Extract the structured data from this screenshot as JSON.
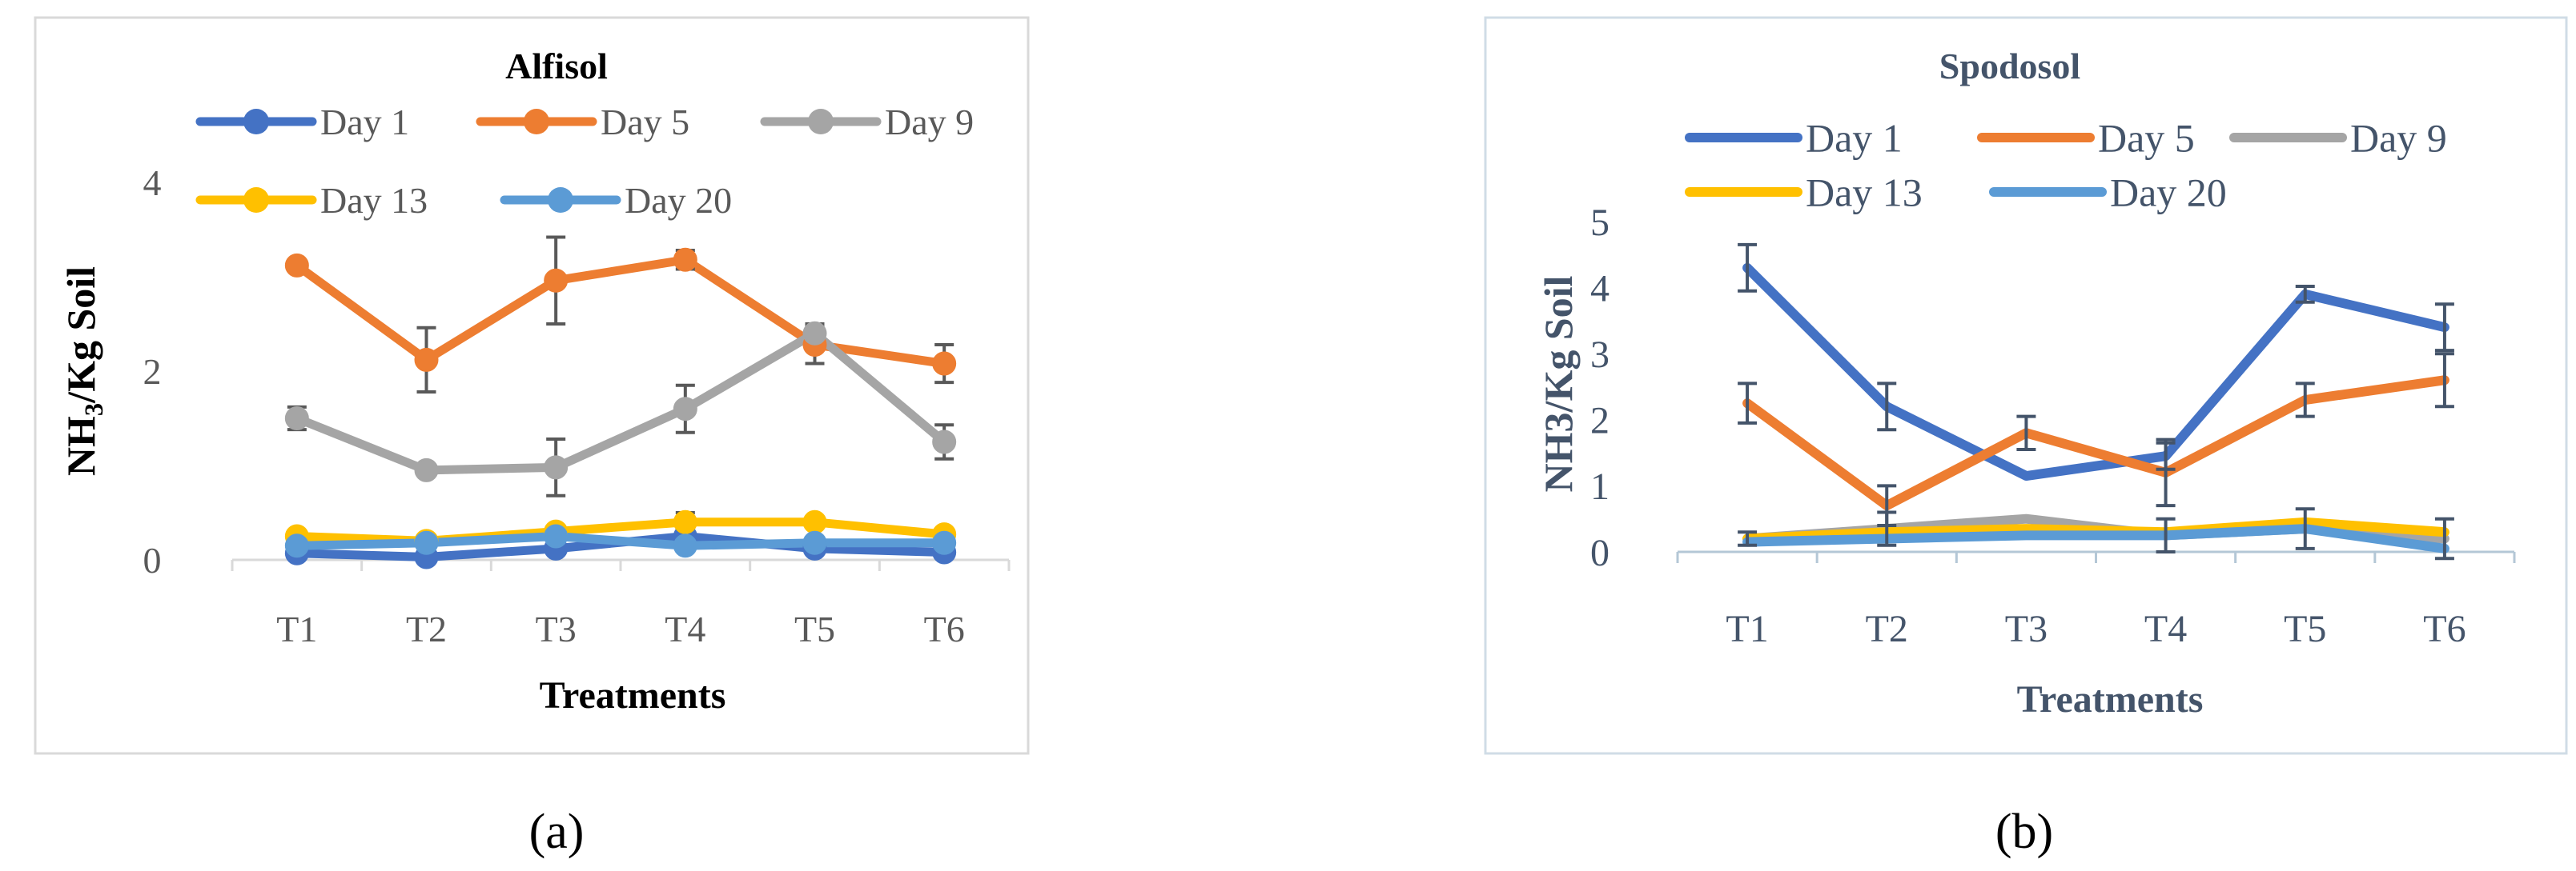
{
  "figure_labels": {
    "a": "(a)",
    "b": "(b)"
  },
  "chart_data": [
    {
      "type": "line",
      "title": "Alfisol",
      "xlabel": "Treatments",
      "ylabel": "NH₃/Kg Soil",
      "categories": [
        "T1",
        "T2",
        "T3",
        "T4",
        "T5",
        "T6"
      ],
      "ylim": [
        0,
        4
      ],
      "yticks": [
        "0",
        "2",
        "4"
      ],
      "grid": false,
      "legend_position": "top",
      "markers": true,
      "series": [
        {
          "name": "Day 1",
          "color": "#4472C4",
          "values": [
            0.07,
            0.03,
            0.12,
            0.25,
            0.12,
            0.08
          ],
          "errors": [
            0,
            0,
            0,
            0,
            0,
            0
          ]
        },
        {
          "name": "Day 5",
          "color": "#ED7D31",
          "values": [
            3.12,
            2.12,
            2.96,
            3.18,
            2.28,
            2.08
          ],
          "errors": [
            0,
            0.34,
            0.46,
            0.1,
            0.2,
            0.2
          ]
        },
        {
          "name": "Day 9",
          "color": "#A5A5A5",
          "values": [
            1.5,
            0.95,
            0.98,
            1.6,
            2.4,
            1.25
          ],
          "errors": [
            0.12,
            0.05,
            0.3,
            0.25,
            0.1,
            0.18
          ]
        },
        {
          "name": "Day 13",
          "color": "#FFC000",
          "values": [
            0.25,
            0.2,
            0.3,
            0.4,
            0.4,
            0.27
          ],
          "errors": [
            0,
            0,
            0,
            0.1,
            0,
            0
          ]
        },
        {
          "name": "Day 20",
          "color": "#5B9BD5",
          "values": [
            0.15,
            0.18,
            0.25,
            0.15,
            0.18,
            0.18
          ],
          "errors": [
            0,
            0,
            0,
            0,
            0,
            0
          ]
        }
      ]
    },
    {
      "type": "line",
      "title": "Spodosol",
      "xlabel": "Treatments",
      "ylabel": "NH3/Kg Soil",
      "categories": [
        "T1",
        "T2",
        "T3",
        "T4",
        "T5",
        "T6"
      ],
      "ylim": [
        0,
        5
      ],
      "yticks": [
        "0",
        "1",
        "2",
        "3",
        "4",
        "5"
      ],
      "grid": false,
      "legend_position": "top",
      "markers": false,
      "series": [
        {
          "name": "Day 1",
          "color": "#4472C4",
          "values": [
            4.3,
            2.2,
            1.15,
            1.45,
            3.9,
            3.4
          ],
          "errors": [
            0.35,
            0.35,
            0,
            0.2,
            0.12,
            0.35
          ]
        },
        {
          "name": "Day 5",
          "color": "#ED7D31",
          "values": [
            2.25,
            0.7,
            1.8,
            1.2,
            2.3,
            2.6
          ],
          "errors": [
            0.3,
            0.3,
            0.25,
            0.5,
            0.25,
            0.4
          ]
        },
        {
          "name": "Day 9",
          "color": "#A5A5A5",
          "values": [
            0.2,
            0.35,
            0.5,
            0.25,
            0.35,
            0.2
          ],
          "errors": [
            0.1,
            0.25,
            0,
            0.25,
            0.3,
            0.3
          ]
        },
        {
          "name": "Day 13",
          "color": "#FFC000",
          "values": [
            0.2,
            0.3,
            0.35,
            0.3,
            0.45,
            0.3
          ],
          "errors": [
            0,
            0,
            0,
            0,
            0,
            0
          ]
        },
        {
          "name": "Day 20",
          "color": "#5B9BD5",
          "values": [
            0.15,
            0.2,
            0.25,
            0.25,
            0.35,
            0.05
          ],
          "errors": [
            0,
            0,
            0,
            0,
            0,
            0
          ]
        }
      ]
    }
  ]
}
